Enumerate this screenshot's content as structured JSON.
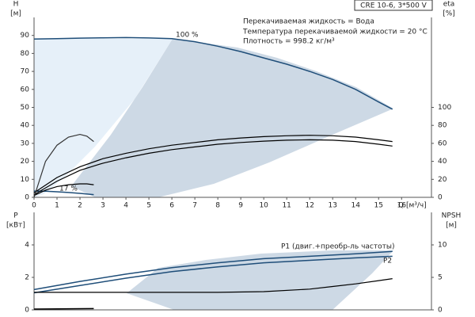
{
  "header": {
    "title": "CRE 10-6, 3*500 V",
    "info": [
      "Перекачиваемая жидкость = Вода",
      "Температура перекачиваемой жидкости = 20 °C",
      "Плотность = 998.2 кг/м³"
    ]
  },
  "chart_data": [
    {
      "type": "line",
      "x_label": "Q [м³/ч]",
      "y_label": [
        "H",
        "[м]"
      ],
      "y2_label": [
        "eta",
        "[%]"
      ],
      "xlim": [
        0,
        17.3
      ],
      "xticks": [
        0,
        1,
        2,
        3,
        4,
        5,
        6,
        7,
        8,
        9,
        10,
        11,
        12,
        13,
        14,
        15,
        16
      ],
      "ylim": [
        0,
        100
      ],
      "yticks": [
        0,
        10,
        20,
        30,
        40,
        50,
        60,
        70,
        80,
        90
      ],
      "y2lim": [
        0,
        200
      ],
      "y2ticks": [
        0,
        20,
        40,
        60,
        80,
        100
      ],
      "series": [
        {
          "name": "100 %",
          "color": "#1f4e79",
          "x": [
            0,
            1,
            2,
            3,
            4,
            5,
            6,
            7,
            8,
            9,
            10,
            11,
            12,
            13,
            14,
            15,
            15.6
          ],
          "values": [
            88,
            88.2,
            88.5,
            88.7,
            88.8,
            88.6,
            88.2,
            86.5,
            84,
            81,
            77.5,
            74,
            70,
            65.5,
            60,
            53,
            49
          ]
        },
        {
          "name": "17 %",
          "color": "#1f4e79",
          "x": [
            0,
            0.5,
            1,
            1.5,
            2,
            2.6
          ],
          "values": [
            3.5,
            3.4,
            3.1,
            2.7,
            2.2,
            1.5
          ]
        },
        {
          "color": "#000000",
          "axis": "y2",
          "x": [
            0,
            1,
            2,
            3,
            4,
            5,
            6,
            7,
            8,
            9,
            10,
            11,
            12,
            13,
            14,
            15,
            15.6
          ],
          "values": [
            5,
            22,
            34,
            43,
            49,
            54,
            58,
            61,
            64,
            66,
            67.5,
            68.5,
            69,
            68.5,
            67,
            64,
            62
          ]
        },
        {
          "color": "#000000",
          "axis": "y2",
          "x": [
            0,
            1,
            2,
            3,
            4,
            5,
            6,
            7,
            8,
            9,
            10,
            11,
            12,
            13,
            14,
            15,
            15.6
          ],
          "values": [
            3,
            18,
            30,
            38,
            44,
            49,
            53,
            56,
            59,
            61,
            62.5,
            63.5,
            64,
            63.5,
            62,
            59,
            57
          ]
        },
        {
          "color": "#000000",
          "axis": "y2",
          "x": [
            0,
            0.5,
            1,
            1.5,
            2,
            2.3,
            2.6
          ],
          "values": [
            2,
            8,
            12,
            14,
            15,
            15,
            14
          ]
        },
        {
          "color": "#333333",
          "axis": "y2",
          "x": [
            0,
            0.5,
            1,
            1.5,
            2,
            2.3,
            2.6
          ],
          "values": [
            0,
            40,
            58,
            67,
            70,
            68,
            62
          ]
        }
      ]
    },
    {
      "type": "line",
      "y_label": [
        "P",
        "[кВт]"
      ],
      "y2_label": [
        "NPSH",
        "[м]"
      ],
      "xlim": [
        0,
        17.3
      ],
      "ylim": [
        0,
        6
      ],
      "yticks": [
        0,
        2,
        4
      ],
      "y2lim": [
        0,
        15
      ],
      "y2ticks": [
        0,
        5,
        10
      ],
      "series": [
        {
          "name": "P1 (двиг.+преобр-ль частоты)",
          "color": "#1f4e79",
          "x": [
            0,
            2,
            4,
            6,
            8,
            10,
            12,
            14,
            15.6
          ],
          "values": [
            1.25,
            1.75,
            2.2,
            2.6,
            2.9,
            3.15,
            3.3,
            3.45,
            3.6
          ]
        },
        {
          "name": "P2",
          "color": "#1f4e79",
          "x": [
            0,
            2,
            4,
            6,
            8,
            10,
            12,
            14,
            15.6
          ],
          "values": [
            1.05,
            1.5,
            1.95,
            2.35,
            2.65,
            2.9,
            3.05,
            3.2,
            3.3
          ]
        },
        {
          "color": "#000000",
          "axis": "y2",
          "x": [
            0,
            2,
            4,
            6,
            8,
            10,
            12,
            13,
            14,
            15,
            15.6
          ],
          "values": [
            2.7,
            2.7,
            2.7,
            2.7,
            2.7,
            2.8,
            3.2,
            3.6,
            4,
            4.5,
            4.8
          ]
        },
        {
          "color": "#000000",
          "x": [
            0,
            2.6
          ],
          "values": [
            0.05,
            0.08
          ]
        }
      ]
    }
  ]
}
